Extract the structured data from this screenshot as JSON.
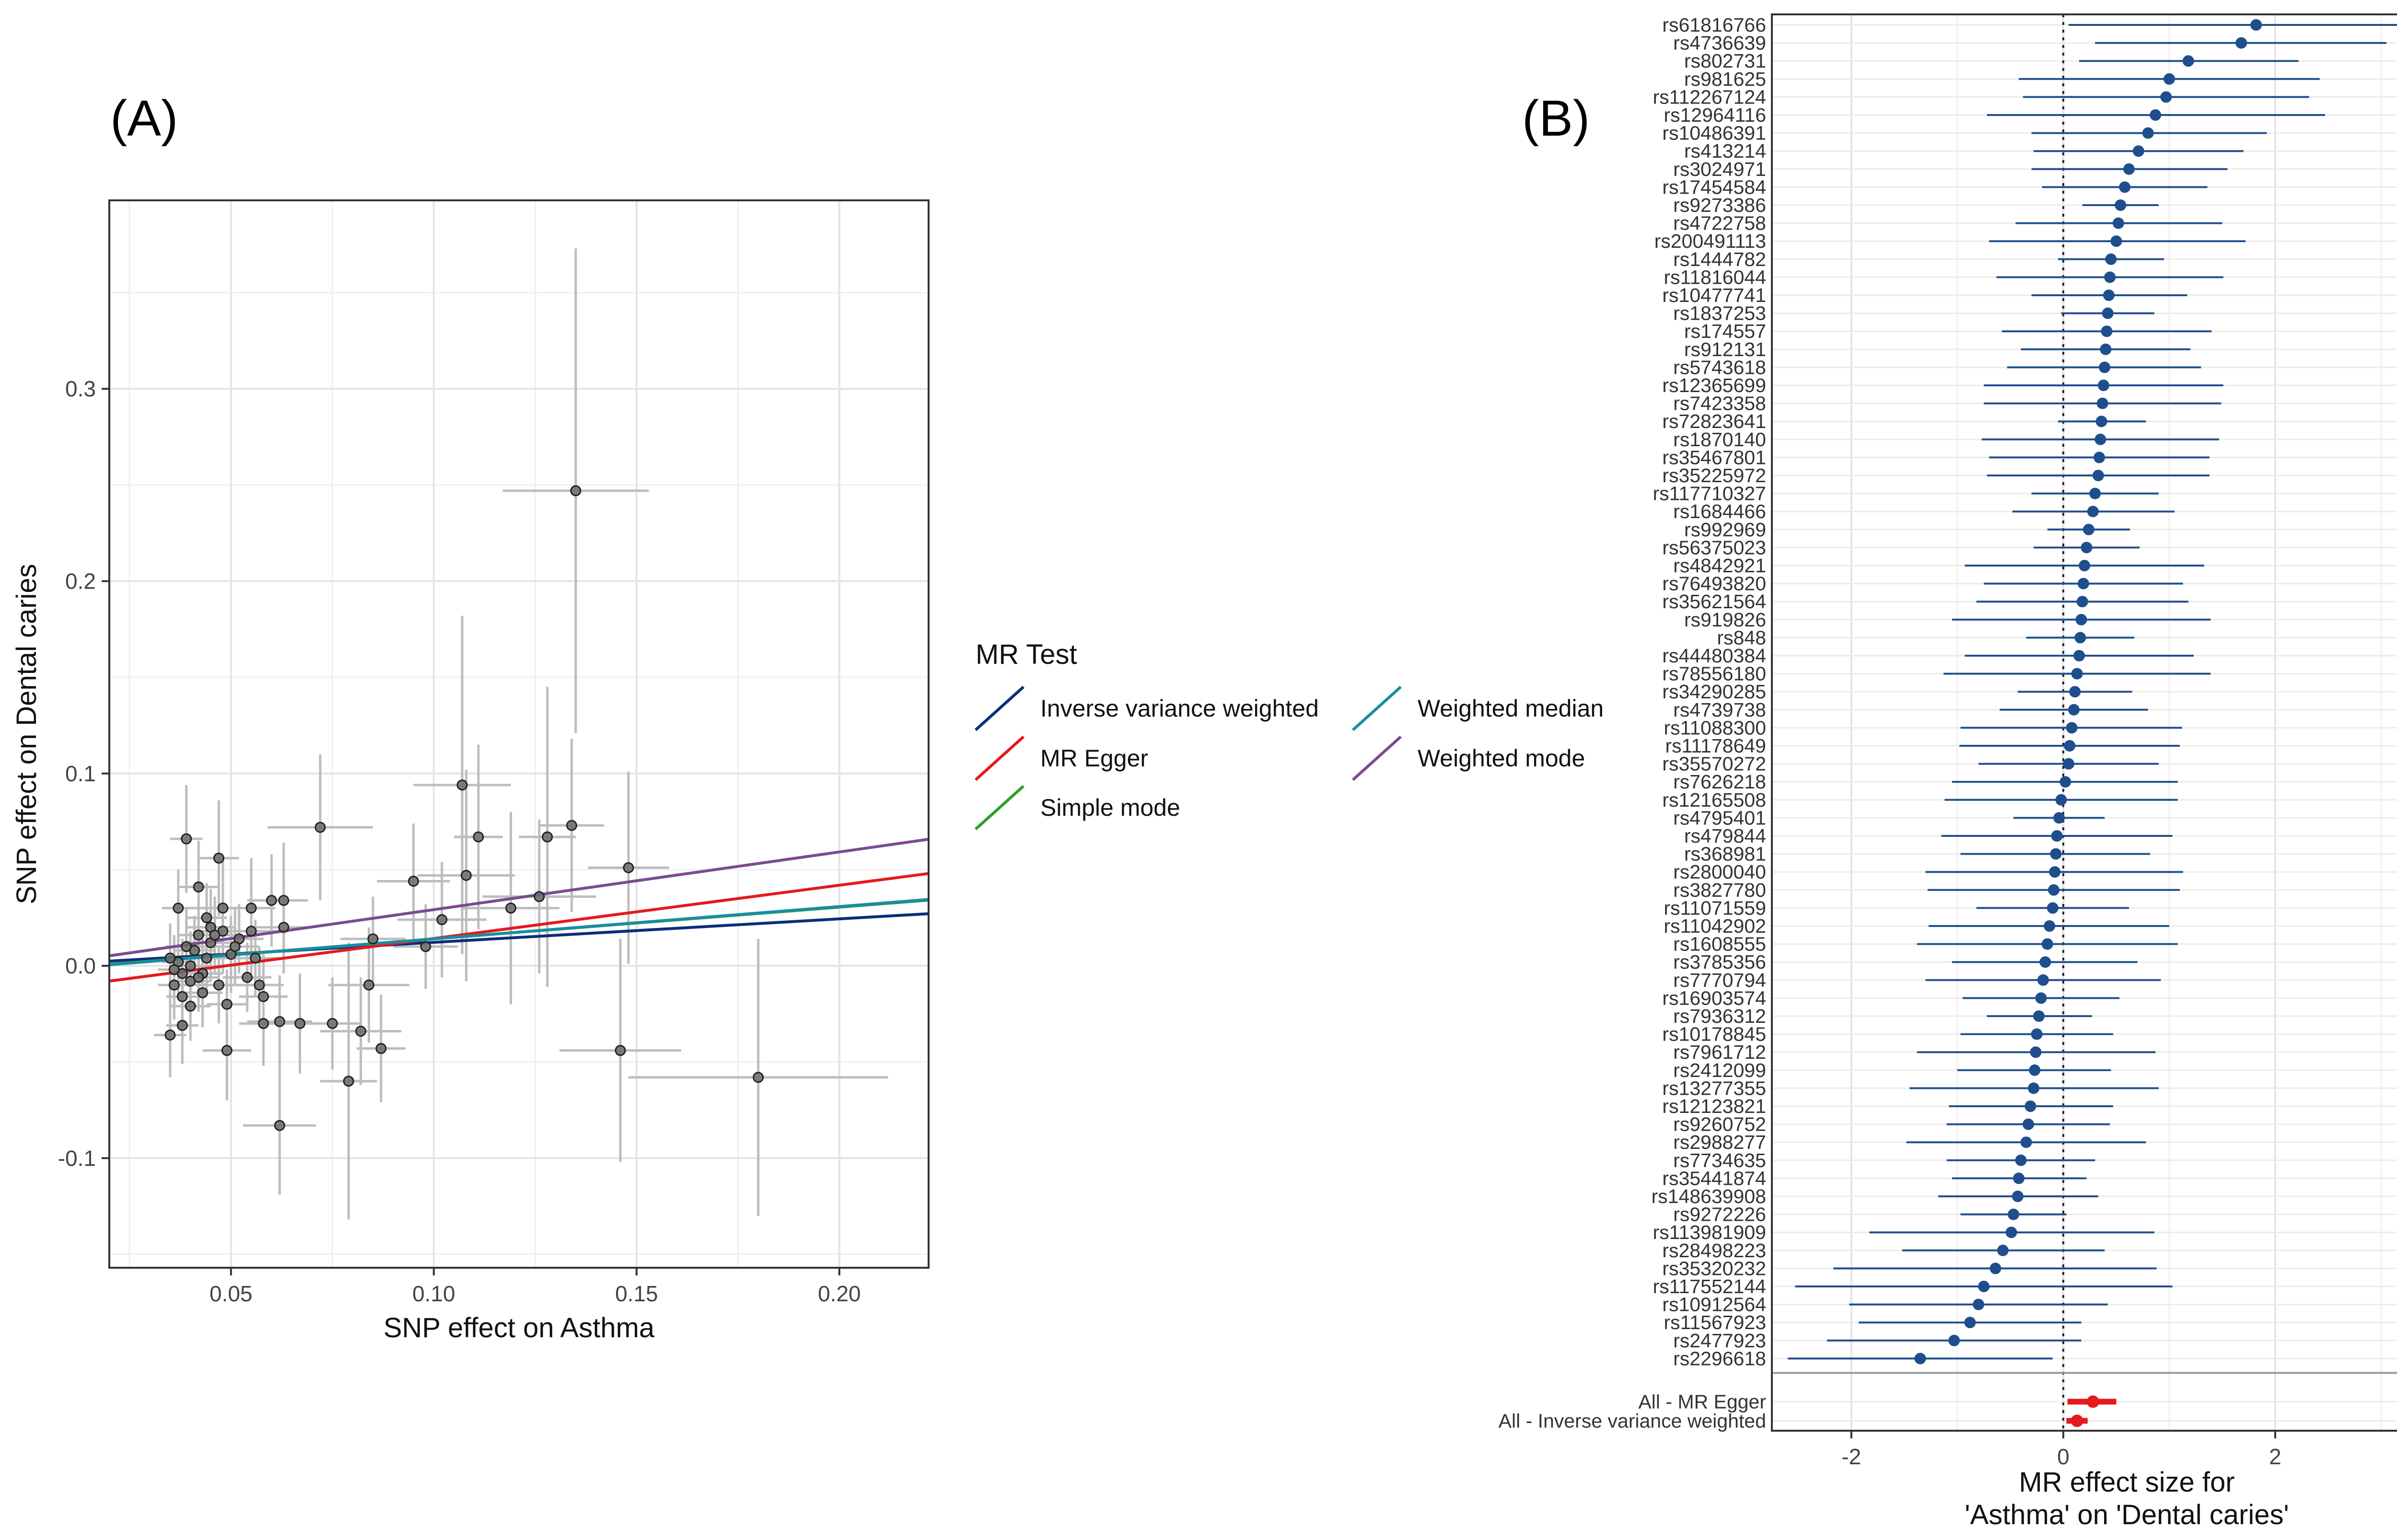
{
  "panel_labels": {
    "a": "(A)",
    "b": "(B)"
  },
  "chart_data": [
    {
      "type": "scatter",
      "panel": "(A)",
      "xlabel": "SNP effect on Asthma",
      "ylabel": "SNP effect on Dental caries",
      "xlim": [
        0.02,
        0.222
      ],
      "ylim": [
        -0.157,
        0.398
      ],
      "x_ticks": [
        0.05,
        0.1,
        0.15,
        0.2
      ],
      "x_tick_labels": [
        "0.05",
        "0.10",
        "0.15",
        "0.20"
      ],
      "y_ticks": [
        -0.1,
        0.0,
        0.1,
        0.2,
        0.3
      ],
      "y_tick_labels": [
        "-0.1",
        "0.0",
        "0.1",
        "0.2",
        "0.3"
      ],
      "grid": true,
      "points": [
        {
          "x": 0.135,
          "y": 0.247,
          "xe": 0.018,
          "ye": 0.126
        },
        {
          "x": 0.107,
          "y": 0.094,
          "xe": 0.012,
          "ye": 0.088
        },
        {
          "x": 0.18,
          "y": -0.058,
          "xe": 0.032,
          "ye": 0.072
        },
        {
          "x": 0.146,
          "y": -0.044,
          "xe": 0.015,
          "ye": 0.058
        },
        {
          "x": 0.148,
          "y": 0.051,
          "xe": 0.01,
          "ye": 0.05
        },
        {
          "x": 0.134,
          "y": 0.073,
          "xe": 0.008,
          "ye": 0.045
        },
        {
          "x": 0.128,
          "y": 0.067,
          "xe": 0.007,
          "ye": 0.078
        },
        {
          "x": 0.126,
          "y": 0.036,
          "xe": 0.014,
          "ye": 0.04
        },
        {
          "x": 0.119,
          "y": 0.03,
          "xe": 0.012,
          "ye": 0.05
        },
        {
          "x": 0.111,
          "y": 0.067,
          "xe": 0.006,
          "ye": 0.048
        },
        {
          "x": 0.108,
          "y": 0.047,
          "xe": 0.012,
          "ye": 0.055
        },
        {
          "x": 0.102,
          "y": 0.024,
          "xe": 0.011,
          "ye": 0.03
        },
        {
          "x": 0.098,
          "y": 0.01,
          "xe": 0.008,
          "ye": 0.022
        },
        {
          "x": 0.095,
          "y": 0.044,
          "xe": 0.009,
          "ye": 0.03
        },
        {
          "x": 0.072,
          "y": 0.072,
          "xe": 0.013,
          "ye": 0.038
        },
        {
          "x": 0.062,
          "y": -0.083,
          "xe": 0.009,
          "ye": 0.036
        },
        {
          "x": 0.079,
          "y": -0.06,
          "xe": 0.007,
          "ye": 0.072
        },
        {
          "x": 0.084,
          "y": -0.01,
          "xe": 0.01,
          "ye": 0.03
        },
        {
          "x": 0.085,
          "y": 0.014,
          "xe": 0.008,
          "ye": 0.022
        },
        {
          "x": 0.087,
          "y": -0.043,
          "xe": 0.006,
          "ye": 0.028
        },
        {
          "x": 0.082,
          "y": -0.034,
          "xe": 0.01,
          "ye": 0.028
        },
        {
          "x": 0.075,
          "y": -0.03,
          "xe": 0.007,
          "ye": 0.024
        },
        {
          "x": 0.067,
          "y": -0.03,
          "xe": 0.009,
          "ye": 0.026
        },
        {
          "x": 0.062,
          "y": -0.029,
          "xe": 0.008,
          "ye": 0.024
        },
        {
          "x": 0.058,
          "y": -0.03,
          "xe": 0.006,
          "ye": 0.022
        },
        {
          "x": 0.049,
          "y": -0.044,
          "xe": 0.006,
          "ye": 0.026
        },
        {
          "x": 0.058,
          "y": -0.016,
          "xe": 0.006,
          "ye": 0.022
        },
        {
          "x": 0.063,
          "y": 0.02,
          "xe": 0.007,
          "ye": 0.024
        },
        {
          "x": 0.06,
          "y": 0.034,
          "xe": 0.006,
          "ye": 0.024
        },
        {
          "x": 0.063,
          "y": 0.034,
          "xe": 0.006,
          "ye": 0.03
        },
        {
          "x": 0.055,
          "y": 0.03,
          "xe": 0.006,
          "ye": 0.026
        },
        {
          "x": 0.055,
          "y": 0.018,
          "xe": 0.007,
          "ye": 0.022
        },
        {
          "x": 0.056,
          "y": 0.004,
          "xe": 0.006,
          "ye": 0.02
        },
        {
          "x": 0.054,
          "y": -0.006,
          "xe": 0.006,
          "ye": 0.018
        },
        {
          "x": 0.05,
          "y": 0.006,
          "xe": 0.007,
          "ye": 0.02
        },
        {
          "x": 0.047,
          "y": 0.056,
          "xe": 0.005,
          "ye": 0.03
        },
        {
          "x": 0.048,
          "y": 0.03,
          "xe": 0.007,
          "ye": 0.026
        },
        {
          "x": 0.048,
          "y": 0.018,
          "xe": 0.006,
          "ye": 0.022
        },
        {
          "x": 0.047,
          "y": -0.01,
          "xe": 0.006,
          "ye": 0.02
        },
        {
          "x": 0.049,
          "y": -0.02,
          "xe": 0.005,
          "ye": 0.018
        },
        {
          "x": 0.045,
          "y": 0.02,
          "xe": 0.006,
          "ye": 0.02
        },
        {
          "x": 0.045,
          "y": 0.012,
          "xe": 0.005,
          "ye": 0.02
        },
        {
          "x": 0.044,
          "y": 0.004,
          "xe": 0.006,
          "ye": 0.018
        },
        {
          "x": 0.043,
          "y": -0.004,
          "xe": 0.005,
          "ye": 0.018
        },
        {
          "x": 0.043,
          "y": -0.014,
          "xe": 0.005,
          "ye": 0.018
        },
        {
          "x": 0.042,
          "y": 0.041,
          "xe": 0.005,
          "ye": 0.024
        },
        {
          "x": 0.042,
          "y": 0.016,
          "xe": 0.005,
          "ye": 0.02
        },
        {
          "x": 0.041,
          "y": 0.008,
          "xe": 0.005,
          "ye": 0.018
        },
        {
          "x": 0.04,
          "y": 0.0,
          "xe": 0.005,
          "ye": 0.018
        },
        {
          "x": 0.04,
          "y": -0.008,
          "xe": 0.005,
          "ye": 0.018
        },
        {
          "x": 0.039,
          "y": 0.066,
          "xe": 0.004,
          "ye": 0.028
        },
        {
          "x": 0.039,
          "y": 0.01,
          "xe": 0.005,
          "ye": 0.02
        },
        {
          "x": 0.038,
          "y": -0.004,
          "xe": 0.004,
          "ye": 0.018
        },
        {
          "x": 0.038,
          "y": -0.016,
          "xe": 0.004,
          "ye": 0.018
        },
        {
          "x": 0.037,
          "y": 0.03,
          "xe": 0.004,
          "ye": 0.02
        },
        {
          "x": 0.037,
          "y": 0.002,
          "xe": 0.004,
          "ye": 0.018
        },
        {
          "x": 0.036,
          "y": -0.002,
          "xe": 0.004,
          "ye": 0.018
        },
        {
          "x": 0.036,
          "y": -0.01,
          "xe": 0.004,
          "ye": 0.018
        },
        {
          "x": 0.035,
          "y": 0.004,
          "xe": 0.004,
          "ye": 0.018
        },
        {
          "x": 0.035,
          "y": -0.036,
          "xe": 0.004,
          "ye": 0.022
        },
        {
          "x": 0.038,
          "y": -0.031,
          "xe": 0.004,
          "ye": 0.02
        },
        {
          "x": 0.04,
          "y": -0.021,
          "xe": 0.005,
          "ye": 0.018
        },
        {
          "x": 0.052,
          "y": 0.014,
          "xe": 0.006,
          "ye": 0.018
        },
        {
          "x": 0.044,
          "y": 0.025,
          "xe": 0.005,
          "ye": 0.018
        },
        {
          "x": 0.046,
          "y": 0.016,
          "xe": 0.005,
          "ye": 0.02
        },
        {
          "x": 0.051,
          "y": 0.01,
          "xe": 0.006,
          "ye": 0.02
        },
        {
          "x": 0.057,
          "y": -0.01,
          "xe": 0.006,
          "ye": 0.02
        },
        {
          "x": 0.042,
          "y": -0.006,
          "xe": 0.005,
          "ye": 0.018
        }
      ],
      "lines": [
        {
          "name": "Inverse variance weighted",
          "color": "#0b2e7a",
          "intercept": 0.0,
          "slope": 0.122
        },
        {
          "name": "MR Egger",
          "color": "#e41a1c",
          "intercept": -0.0135,
          "slope": 0.277
        },
        {
          "name": "Simple mode",
          "color": "#2ca02c",
          "intercept": -0.0025,
          "slope": 0.165
        },
        {
          "name": "Weighted median",
          "color": "#1a8ca5",
          "intercept": -0.0028,
          "slope": 0.168
        },
        {
          "name": "Weighted mode",
          "color": "#7b4b94",
          "intercept": -0.0008,
          "slope": 0.3
        }
      ],
      "legend": {
        "title": "MR Test",
        "placement": "right",
        "items": [
          {
            "label": "Inverse variance weighted",
            "color": "#0b2e7a"
          },
          {
            "label": "MR Egger",
            "color": "#e41a1c"
          },
          {
            "label": "Simple mode",
            "color": "#2ca02c"
          },
          {
            "label": "Weighted median",
            "color": "#1a8ca5"
          },
          {
            "label": "Weighted mode",
            "color": "#7b4b94"
          }
        ]
      }
    },
    {
      "type": "forest",
      "panel": "(B)",
      "xlabel": "MR effect size for\n'Asthma' on 'Dental caries'",
      "xlim": [
        -2.75,
        3.95
      ],
      "x_ticks": [
        -2,
        0,
        2
      ],
      "x_tick_labels": [
        "-2",
        "0",
        "2"
      ],
      "reference_line": 0,
      "grid": true,
      "snps": [
        {
          "snp": "rs61816766",
          "b": 1.82,
          "lo": 0.05,
          "hi": 3.62
        },
        {
          "snp": "rs4736639",
          "b": 1.68,
          "lo": 0.3,
          "hi": 3.05
        },
        {
          "snp": "rs802731",
          "b": 1.18,
          "lo": 0.15,
          "hi": 2.22
        },
        {
          "snp": "rs981625",
          "b": 1.0,
          "lo": -0.42,
          "hi": 2.42
        },
        {
          "snp": "rs112267124",
          "b": 0.97,
          "lo": -0.38,
          "hi": 2.32
        },
        {
          "snp": "rs12964116",
          "b": 0.87,
          "lo": -0.72,
          "hi": 2.47
        },
        {
          "snp": "rs10486391",
          "b": 0.8,
          "lo": -0.3,
          "hi": 1.92
        },
        {
          "snp": "rs413214",
          "b": 0.71,
          "lo": -0.28,
          "hi": 1.7
        },
        {
          "snp": "rs3024971",
          "b": 0.62,
          "lo": -0.3,
          "hi": 1.55
        },
        {
          "snp": "rs17454584",
          "b": 0.58,
          "lo": -0.2,
          "hi": 1.36
        },
        {
          "snp": "rs9273386",
          "b": 0.54,
          "lo": 0.18,
          "hi": 0.9
        },
        {
          "snp": "rs4722758",
          "b": 0.52,
          "lo": -0.45,
          "hi": 1.5
        },
        {
          "snp": "rs200491113",
          "b": 0.5,
          "lo": -0.7,
          "hi": 1.72
        },
        {
          "snp": "rs1444782",
          "b": 0.45,
          "lo": -0.05,
          "hi": 0.95
        },
        {
          "snp": "rs11816044",
          "b": 0.44,
          "lo": -0.63,
          "hi": 1.51
        },
        {
          "snp": "rs10477741",
          "b": 0.43,
          "lo": -0.3,
          "hi": 1.17
        },
        {
          "snp": "rs1837253",
          "b": 0.42,
          "lo": -0.02,
          "hi": 0.86
        },
        {
          "snp": "rs174557",
          "b": 0.41,
          "lo": -0.58,
          "hi": 1.4
        },
        {
          "snp": "rs912131",
          "b": 0.4,
          "lo": -0.4,
          "hi": 1.2
        },
        {
          "snp": "rs5743618",
          "b": 0.39,
          "lo": -0.53,
          "hi": 1.3
        },
        {
          "snp": "rs12365699",
          "b": 0.38,
          "lo": -0.75,
          "hi": 1.51
        },
        {
          "snp": "rs7423358",
          "b": 0.37,
          "lo": -0.75,
          "hi": 1.49
        },
        {
          "snp": "rs72823641",
          "b": 0.36,
          "lo": -0.05,
          "hi": 0.78
        },
        {
          "snp": "rs1870140",
          "b": 0.35,
          "lo": -0.77,
          "hi": 1.47
        },
        {
          "snp": "rs35467801",
          "b": 0.34,
          "lo": -0.7,
          "hi": 1.38
        },
        {
          "snp": "rs35225972",
          "b": 0.33,
          "lo": -0.72,
          "hi": 1.38
        },
        {
          "snp": "rs117710327",
          "b": 0.3,
          "lo": -0.3,
          "hi": 0.9
        },
        {
          "snp": "rs1684466",
          "b": 0.28,
          "lo": -0.48,
          "hi": 1.05
        },
        {
          "snp": "rs992969",
          "b": 0.24,
          "lo": -0.15,
          "hi": 0.63
        },
        {
          "snp": "rs56375023",
          "b": 0.22,
          "lo": -0.28,
          "hi": 0.72
        },
        {
          "snp": "rs4842921",
          "b": 0.2,
          "lo": -0.93,
          "hi": 1.33
        },
        {
          "snp": "rs76493820",
          "b": 0.19,
          "lo": -0.75,
          "hi": 1.13
        },
        {
          "snp": "rs35621564",
          "b": 0.18,
          "lo": -0.82,
          "hi": 1.18
        },
        {
          "snp": "rs919826",
          "b": 0.17,
          "lo": -1.05,
          "hi": 1.39
        },
        {
          "snp": "rs848",
          "b": 0.16,
          "lo": -0.35,
          "hi": 0.67
        },
        {
          "snp": "rs44480384",
          "b": 0.15,
          "lo": -0.93,
          "hi": 1.23
        },
        {
          "snp": "rs78556180",
          "b": 0.13,
          "lo": -1.13,
          "hi": 1.39
        },
        {
          "snp": "rs34290285",
          "b": 0.11,
          "lo": -0.43,
          "hi": 0.65
        },
        {
          "snp": "rs4739738",
          "b": 0.1,
          "lo": -0.6,
          "hi": 0.8
        },
        {
          "snp": "rs11088300",
          "b": 0.08,
          "lo": -0.97,
          "hi": 1.12
        },
        {
          "snp": "rs11178649",
          "b": 0.06,
          "lo": -0.98,
          "hi": 1.1
        },
        {
          "snp": "rs35570272",
          "b": 0.05,
          "lo": -0.8,
          "hi": 0.9
        },
        {
          "snp": "rs7626218",
          "b": 0.02,
          "lo": -1.05,
          "hi": 1.08
        },
        {
          "snp": "rs12165508",
          "b": -0.02,
          "lo": -1.12,
          "hi": 1.08
        },
        {
          "snp": "rs4795401",
          "b": -0.04,
          "lo": -0.47,
          "hi": 0.39
        },
        {
          "snp": "rs479844",
          "b": -0.06,
          "lo": -1.15,
          "hi": 1.03
        },
        {
          "snp": "rs368981",
          "b": -0.07,
          "lo": -0.97,
          "hi": 0.82
        },
        {
          "snp": "rs2800040",
          "b": -0.08,
          "lo": -1.3,
          "hi": 1.13
        },
        {
          "snp": "rs3827780",
          "b": -0.09,
          "lo": -1.28,
          "hi": 1.1
        },
        {
          "snp": "rs11071559",
          "b": -0.1,
          "lo": -0.82,
          "hi": 0.62
        },
        {
          "snp": "rs11042902",
          "b": -0.13,
          "lo": -1.27,
          "hi": 1.0
        },
        {
          "snp": "rs1608555",
          "b": -0.15,
          "lo": -1.38,
          "hi": 1.08
        },
        {
          "snp": "rs3785356",
          "b": -0.17,
          "lo": -1.05,
          "hi": 0.7
        },
        {
          "snp": "rs7770794",
          "b": -0.19,
          "lo": -1.3,
          "hi": 0.92
        },
        {
          "snp": "rs16903574",
          "b": -0.21,
          "lo": -0.95,
          "hi": 0.53
        },
        {
          "snp": "rs7936312",
          "b": -0.23,
          "lo": -0.72,
          "hi": 0.27
        },
        {
          "snp": "rs10178845",
          "b": -0.25,
          "lo": -0.97,
          "hi": 0.47
        },
        {
          "snp": "rs7961712",
          "b": -0.26,
          "lo": -1.38,
          "hi": 0.87
        },
        {
          "snp": "rs2412099",
          "b": -0.27,
          "lo": -1.0,
          "hi": 0.45
        },
        {
          "snp": "rs13277355",
          "b": -0.28,
          "lo": -1.45,
          "hi": 0.9
        },
        {
          "snp": "rs12123821",
          "b": -0.31,
          "lo": -1.08,
          "hi": 0.47
        },
        {
          "snp": "rs9260752",
          "b": -0.33,
          "lo": -1.1,
          "hi": 0.44
        },
        {
          "snp": "rs2988277",
          "b": -0.35,
          "lo": -1.48,
          "hi": 0.78
        },
        {
          "snp": "rs7734635",
          "b": -0.4,
          "lo": -1.1,
          "hi": 0.3
        },
        {
          "snp": "rs35441874",
          "b": -0.42,
          "lo": -1.05,
          "hi": 0.22
        },
        {
          "snp": "rs148639908",
          "b": -0.43,
          "lo": -1.18,
          "hi": 0.33
        },
        {
          "snp": "rs9272226",
          "b": -0.47,
          "lo": -0.97,
          "hi": 0.03
        },
        {
          "snp": "rs113981909",
          "b": -0.49,
          "lo": -1.83,
          "hi": 0.86
        },
        {
          "snp": "rs28498223",
          "b": -0.57,
          "lo": -1.52,
          "hi": 0.39
        },
        {
          "snp": "rs35320232",
          "b": -0.64,
          "lo": -2.17,
          "hi": 0.88
        },
        {
          "snp": "rs117552144",
          "b": -0.75,
          "lo": -2.53,
          "hi": 1.03
        },
        {
          "snp": "rs10912564",
          "b": -0.8,
          "lo": -2.02,
          "hi": 0.42
        },
        {
          "snp": "rs11567923",
          "b": -0.88,
          "lo": -1.93,
          "hi": 0.17
        },
        {
          "snp": "rs2477923",
          "b": -1.03,
          "lo": -2.23,
          "hi": 0.17
        },
        {
          "snp": "rs2296618",
          "b": -1.35,
          "lo": -2.6,
          "hi": -0.1
        }
      ],
      "summary": [
        {
          "label": "All - MR Egger",
          "b": 0.28,
          "lo": 0.04,
          "hi": 0.5,
          "color": "#e41a1c"
        },
        {
          "label": "All - Inverse variance weighted",
          "b": 0.13,
          "lo": 0.03,
          "hi": 0.23,
          "color": "#e41a1c"
        }
      ],
      "snp_color": "#1f4e8c"
    }
  ]
}
